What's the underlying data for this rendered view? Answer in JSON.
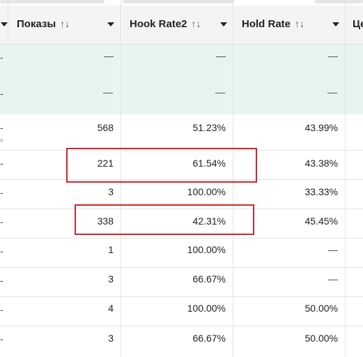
{
  "table": {
    "columns": [
      {
        "label": "Показы",
        "sort_icon": "↑↓"
      },
      {
        "label": "Hook Rate2",
        "sort_icon": "↑↓"
      },
      {
        "label": "Hold Rate",
        "sort_icon": "↑↓"
      },
      {
        "label": "Це"
      }
    ],
    "stub_dash": "-",
    "stub_fragment": "e",
    "summary_rows": [
      {
        "shows": "—",
        "hook": "—",
        "hold": "—"
      },
      {
        "shows": "—",
        "hook": "—",
        "hold": "—"
      }
    ],
    "rows": [
      {
        "shows": "568",
        "hook": "51.23%",
        "hold": "43.99%"
      },
      {
        "shows": "221",
        "hook": "61.54%",
        "hold": "43.38%"
      },
      {
        "shows": "3",
        "hook": "100.00%",
        "hold": "33.33%"
      },
      {
        "shows": "338",
        "hook": "42.31%",
        "hold": "45.45%"
      },
      {
        "shows": "1",
        "hook": "100.00%",
        "hold": "—"
      },
      {
        "shows": "3",
        "hook": "66.67%",
        "hold": "—"
      },
      {
        "shows": "4",
        "hook": "100.00%",
        "hold": "50.00%"
      },
      {
        "shows": "3",
        "hook": "66.67%",
        "hold": "50.00%"
      }
    ]
  },
  "annotations": {
    "highlight_color": "#d0262c"
  }
}
